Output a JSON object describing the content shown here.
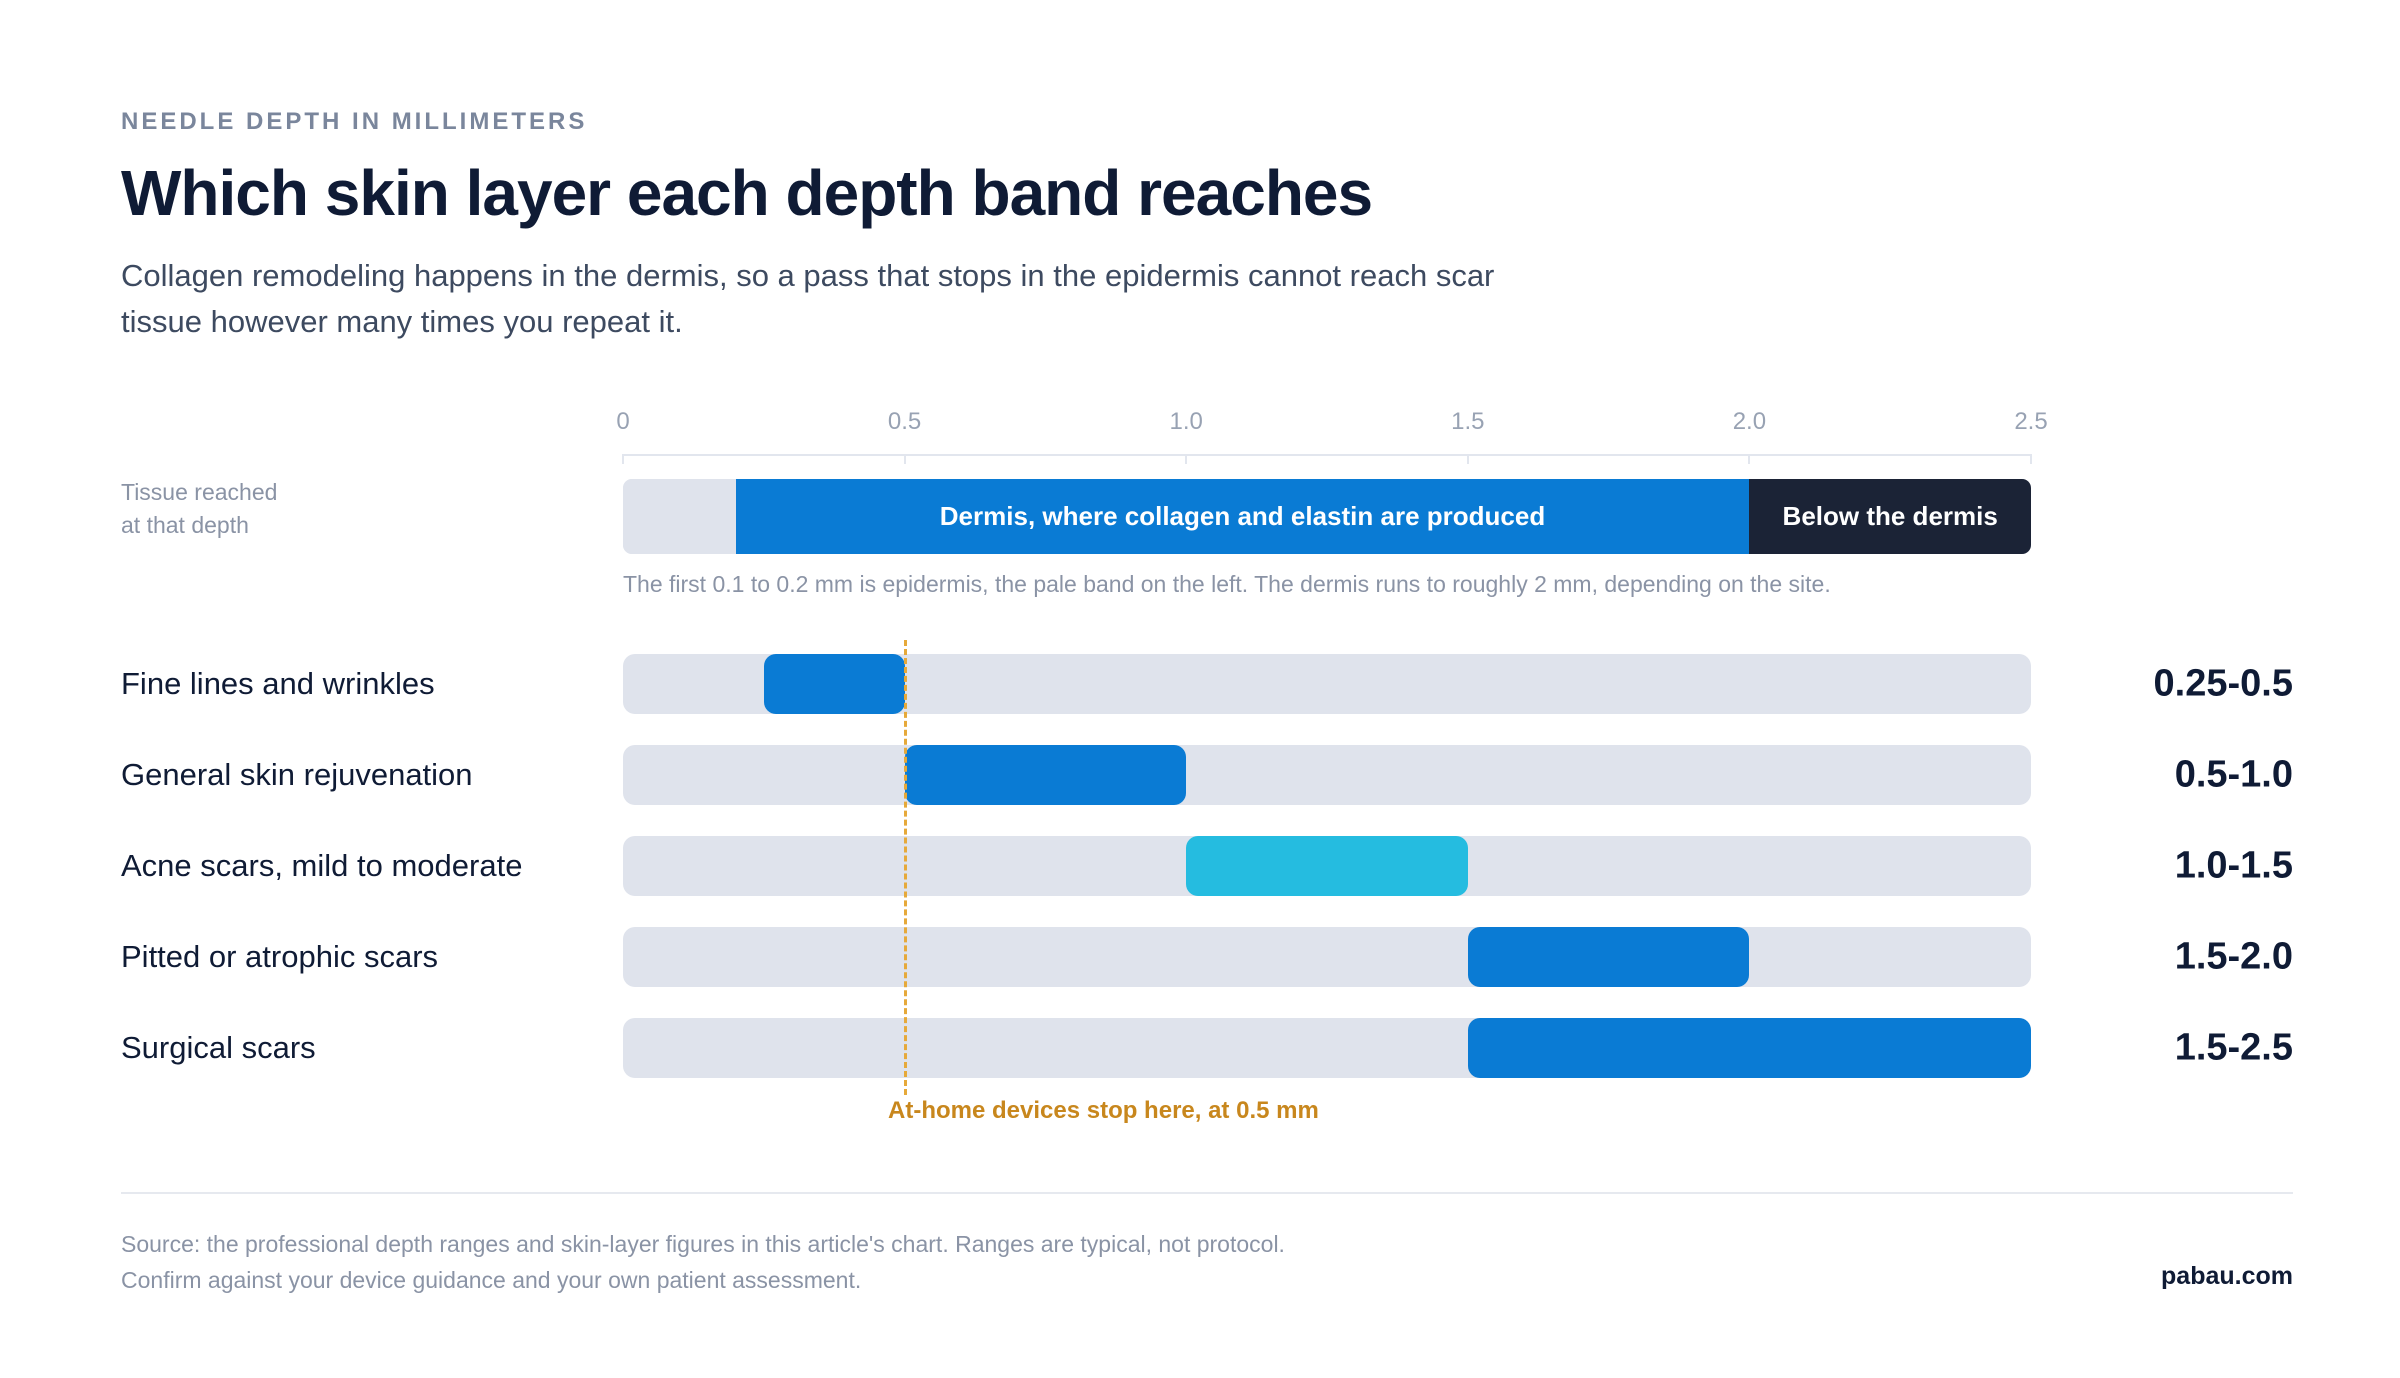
{
  "eyebrow": "NEEDLE DEPTH IN MILLIMETERS",
  "title": "Which skin layer each depth band reaches",
  "subtitle": "Collagen remodeling happens in the dermis, so a pass that stops in the epidermis cannot reach scar tissue however many times you repeat it.",
  "tissue_label_line1": "Tissue reached",
  "tissue_label_line2": "at that depth",
  "layer_note": "The first 0.1 to 0.2 mm is epidermis, the pale band on the left. The dermis runs to roughly 2 mm, depending on the site.",
  "home_device_label": "At-home devices stop here, at 0.5 mm",
  "source": "Source: the professional depth ranges and skin-layer figures in this article's chart. Ranges are typical, not protocol. Confirm against your device guidance and your own patient assessment.",
  "brand": "pabau.com",
  "colors": {
    "epidermis": "#dfe3ec",
    "dermis": "#0a7bd4",
    "below_dermis": "#1b2336",
    "range_blue": "#0a7bd4",
    "range_cyan": "#25bce0",
    "home_line": "#e6a93a"
  },
  "chart_data": {
    "type": "bar",
    "orientation": "horizontal-range",
    "axis": {
      "min": 0,
      "max": 2.5,
      "ticks": [
        "0",
        "0.5",
        "1.0",
        "1.5",
        "2.0",
        "2.5"
      ],
      "tick_values": [
        0,
        0.5,
        1.0,
        1.5,
        2.0,
        2.5
      ]
    },
    "layers": [
      {
        "name": "",
        "start": 0,
        "end": 0.2,
        "color": "#dfe3ec"
      },
      {
        "name": "Dermis, where collagen and elastin are produced",
        "start": 0.2,
        "end": 2.0,
        "color": "#0a7bd4"
      },
      {
        "name": "Below the dermis",
        "start": 2.0,
        "end": 2.5,
        "color": "#1b2336"
      }
    ],
    "rows": [
      {
        "label": "Fine lines and wrinkles",
        "start": 0.25,
        "end": 0.5,
        "value_label": "0.25-0.5",
        "color": "#0a7bd4"
      },
      {
        "label": "General skin rejuvenation",
        "start": 0.5,
        "end": 1.0,
        "value_label": "0.5-1.0",
        "color": "#0a7bd4"
      },
      {
        "label": "Acne scars, mild to moderate",
        "start": 1.0,
        "end": 1.5,
        "value_label": "1.0-1.5",
        "color": "#25bce0"
      },
      {
        "label": "Pitted or atrophic scars",
        "start": 1.5,
        "end": 2.0,
        "value_label": "1.5-2.0",
        "color": "#0a7bd4"
      },
      {
        "label": "Surgical scars",
        "start": 1.5,
        "end": 2.5,
        "value_label": "1.5-2.5",
        "color": "#0a7bd4"
      }
    ],
    "reference_line": {
      "value": 0.5
    }
  }
}
